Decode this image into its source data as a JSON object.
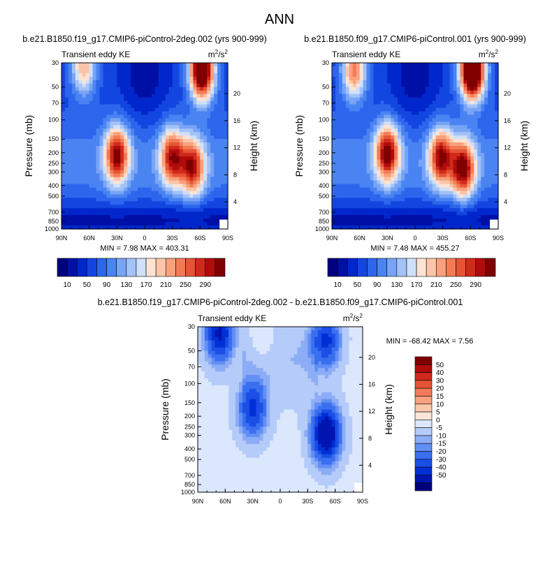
{
  "figure": {
    "title": "ANN"
  },
  "colors": {
    "abs_scale": [
      "#00007f",
      "#0010a6",
      "#0027cb",
      "#1346e0",
      "#2d66ed",
      "#4a84f2",
      "#78a4f5",
      "#a3c2f8",
      "#cfe0fb",
      "#fde3d2",
      "#fcc4a8",
      "#f9a07c",
      "#f27b56",
      "#e65434",
      "#d02a1b",
      "#b00c0c",
      "#800000"
    ],
    "diff_scale": [
      "#00007f",
      "#0015b0",
      "#0030d5",
      "#1a4fe6",
      "#3a6ff0",
      "#628ff4",
      "#8cadf6",
      "#b5cbf9",
      "#dbe7fc",
      "#fde5d6",
      "#fbc6aa",
      "#f8a17f",
      "#f17b58",
      "#e55236",
      "#cf2a1c",
      "#b00c0c",
      "#800000"
    ]
  },
  "chart_data": [
    {
      "type": "heatmap",
      "title": "b.e21.B1850.f19_g17.CMIP6-piControl-2deg.002 (yrs 900-999)",
      "left_label": "Transient eddy KE",
      "units": {
        "base": "m",
        "exp": "2",
        "mid": "/s",
        "exp2": "2"
      },
      "ylabel": "Pressure (mb)",
      "y2label": "Height (km)",
      "xticks": [
        "90N",
        "60N",
        "30N",
        "0",
        "30S",
        "60S",
        "90S"
      ],
      "yticks": [
        "30",
        "50",
        "70",
        "100",
        "150",
        "200",
        "250",
        "300",
        "400",
        "500",
        "700",
        "850",
        "1000"
      ],
      "y2ticks": [
        "20",
        "16",
        "12",
        "8",
        "4"
      ],
      "minmax_label": "MIN =   7.98   MAX = 403.31",
      "min": 7.98,
      "max": 403.31,
      "colorbar_labels": [
        "10",
        "50",
        "90",
        "130",
        "170",
        "210",
        "250",
        "290"
      ],
      "field": "base",
      "features": [
        {
          "lat": 66,
          "p": 32,
          "kind": "max",
          "value": 210
        },
        {
          "lat": 30,
          "p": 210,
          "kind": "max",
          "value": 290
        },
        {
          "lat": -30,
          "p": 220,
          "kind": "max",
          "value": 270
        },
        {
          "lat": -52,
          "p": 270,
          "kind": "max",
          "value": 270
        },
        {
          "lat": -62,
          "p": 35,
          "kind": "max",
          "value": 400
        }
      ]
    },
    {
      "type": "heatmap",
      "title": "b.e21.B1850.f09_g17.CMIP6-piControl.001 (yrs 900-999)",
      "left_label": "Transient eddy KE",
      "units": {
        "base": "m",
        "exp": "2",
        "mid": "/s",
        "exp2": "2"
      },
      "ylabel": "Pressure (mb)",
      "y2label": "Height (km)",
      "xticks": [
        "90N",
        "60N",
        "30N",
        "0",
        "30S",
        "60S",
        "90S"
      ],
      "yticks": [
        "30",
        "50",
        "70",
        "100",
        "150",
        "200",
        "250",
        "300",
        "400",
        "500",
        "700",
        "850",
        "1000"
      ],
      "y2ticks": [
        "20",
        "16",
        "12",
        "8",
        "4"
      ],
      "minmax_label": "MIN =   7.48   MAX = 455.27",
      "min": 7.48,
      "max": 455.27,
      "colorbar_labels": [
        "10",
        "50",
        "90",
        "130",
        "170",
        "210",
        "250",
        "290"
      ],
      "field": "base",
      "features": [
        {
          "lat": 66,
          "p": 35,
          "kind": "max",
          "value": 240
        },
        {
          "lat": 30,
          "p": 200,
          "kind": "max",
          "value": 300
        },
        {
          "lat": -28,
          "p": 220,
          "kind": "max",
          "value": 280
        },
        {
          "lat": -52,
          "p": 280,
          "kind": "max",
          "value": 300
        },
        {
          "lat": -62,
          "p": 35,
          "kind": "max",
          "value": 450
        }
      ]
    },
    {
      "type": "heatmap",
      "title": "b.e21.B1850.f19_g17.CMIP6-piControl-2deg.002 - b.e21.B1850.f09_g17.CMIP6-piControl.001",
      "left_label": "Transient eddy KE",
      "units": {
        "base": "m",
        "exp": "2",
        "mid": "/s",
        "exp2": "2"
      },
      "ylabel": "Pressure (mb)",
      "y2label": "Height (km)",
      "xticks": [
        "90N",
        "60N",
        "30N",
        "0",
        "30S",
        "60S",
        "90S"
      ],
      "yticks": [
        "30",
        "50",
        "70",
        "100",
        "150",
        "200",
        "250",
        "300",
        "400",
        "500",
        "700",
        "850",
        "1000"
      ],
      "y2ticks": [
        "20",
        "16",
        "12",
        "8",
        "4"
      ],
      "minmax_label": "MIN = -68.42   MAX =   7.56",
      "min": -68.42,
      "max": 7.56,
      "colorbar_labels": [
        "50",
        "40",
        "30",
        "20",
        "15",
        "10",
        "5",
        "0",
        "-5",
        "-10",
        "-15",
        "-20",
        "-30",
        "-40",
        "-50"
      ],
      "field": "diff",
      "features": [
        {
          "lat": 66,
          "p": 35,
          "kind": "min",
          "value": -50
        },
        {
          "lat": 30,
          "p": 170,
          "kind": "min",
          "value": -40
        },
        {
          "lat": -50,
          "p": 290,
          "kind": "min",
          "value": -68
        },
        {
          "lat": -50,
          "p": 40,
          "kind": "min",
          "value": -40
        },
        {
          "lat": 20,
          "p": 40,
          "kind": "max",
          "value": 7
        }
      ]
    }
  ]
}
